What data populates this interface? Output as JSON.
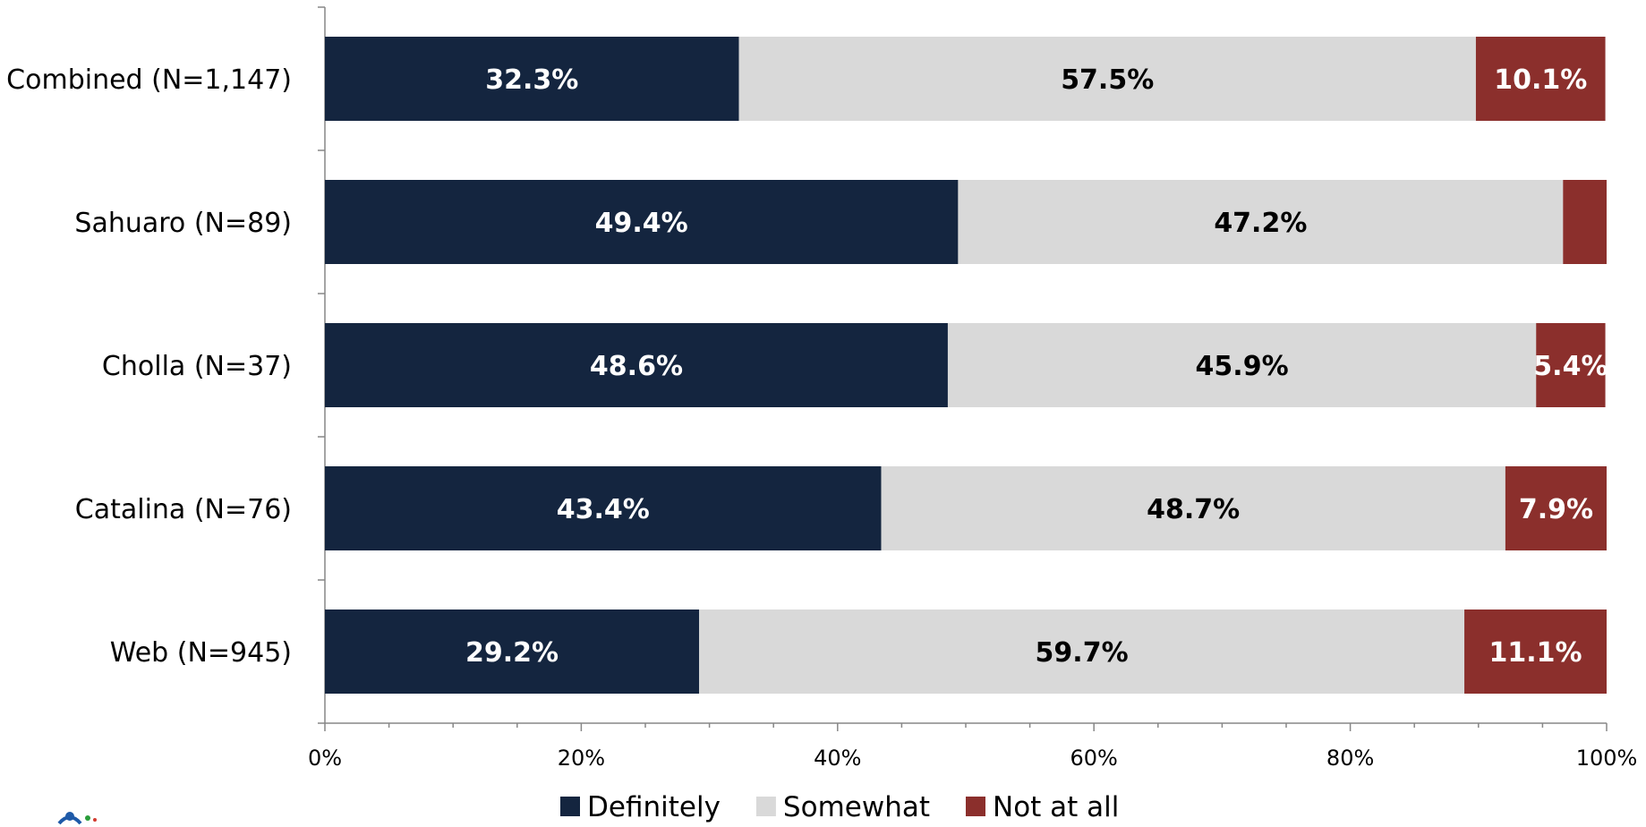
{
  "chart_data": {
    "type": "bar",
    "orientation": "horizontal",
    "stacked": true,
    "categories": [
      "Combined (N=1,147)",
      "Sahuaro (N=89)",
      "Cholla (N=37)",
      "Catalina (N=76)",
      "Web (N=945)"
    ],
    "series": [
      {
        "name": "Definitely",
        "color": "#14253f",
        "label_color": "#ffffff",
        "values": [
          32.3,
          49.4,
          48.6,
          43.4,
          29.2
        ],
        "labels": [
          "32.3%",
          "49.4%",
          "48.6%",
          "43.4%",
          "29.2%"
        ]
      },
      {
        "name": "Somewhat",
        "color": "#d9d9d9",
        "label_color": "#000000",
        "values": [
          57.5,
          47.2,
          45.9,
          48.7,
          59.7
        ],
        "labels": [
          "57.5%",
          "47.2%",
          "45.9%",
          "48.7%",
          "59.7%"
        ]
      },
      {
        "name": "Not at all",
        "color": "#8b2f2c",
        "label_color": "#ffffff",
        "values": [
          10.1,
          3.4,
          5.4,
          7.9,
          11.1
        ],
        "labels": [
          "10.1%",
          "",
          "5.4%",
          "7.9%",
          "11.1%"
        ]
      }
    ],
    "xlim": [
      0,
      100
    ],
    "x_ticks": [
      "0%",
      "20%",
      "40%",
      "60%",
      "80%",
      "100%"
    ],
    "legend_position": "bottom",
    "grid": false
  },
  "logo": {
    "icon": "figure-logo-icon"
  }
}
